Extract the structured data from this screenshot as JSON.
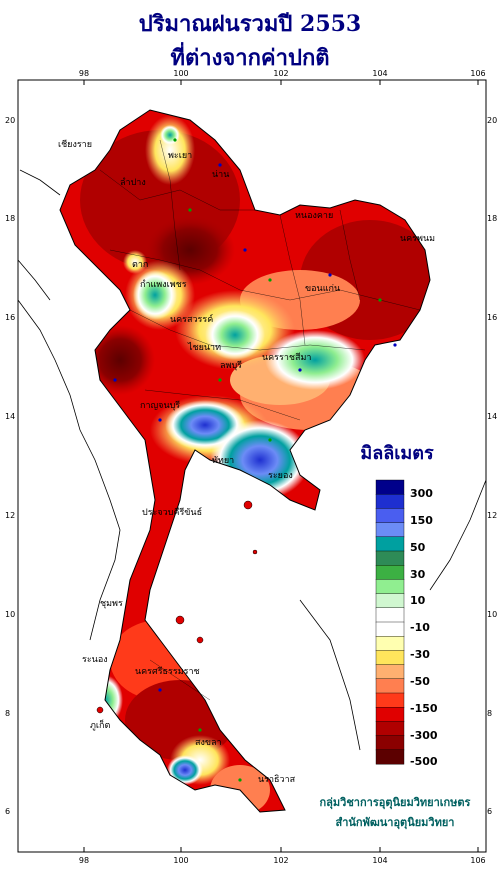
{
  "title_line1": "ปริมาณฝนรวมปี 2553",
  "title_line2": "ที่ต่างจากค่าปกติ",
  "axes": {
    "lon_ticks": [
      "98",
      "100",
      "102",
      "104",
      "106"
    ],
    "lat_ticks": [
      "20",
      "18",
      "16",
      "14",
      "12",
      "10",
      "8",
      "6"
    ]
  },
  "legend": {
    "title": "มิลลิเมตร",
    "colors": [
      "#00008b",
      "#1e2fd0",
      "#4a5ef0",
      "#6c8cf6",
      "#00a0a0",
      "#2e8b57",
      "#3cb043",
      "#90ee90",
      "#d0f7d0",
      "#ffffff",
      "#ffffff",
      "#ffffb0",
      "#ffe55c",
      "#ffb070",
      "#ff7f50",
      "#ff3a1a",
      "#e00000",
      "#b00000",
      "#8b0000",
      "#5c0000"
    ],
    "labels": [
      "300",
      "150",
      "50",
      "30",
      "10",
      "-10",
      "-30",
      "-50",
      "-150",
      "-300",
      "-500"
    ]
  },
  "places": [
    "เชียงราย",
    "พะเยา",
    "น่าน",
    "ลำปาง",
    "ตาก",
    "กำแพงเพชร",
    "นครสวรรค์",
    "หนองคาย",
    "นครพนม",
    "ขอนแก่น",
    "นครราชสีมา",
    "ไชยนาท",
    "ลพบุรี",
    "กาญจนบุรี",
    "พัทยา",
    "ระยอง",
    "ประจวบคีรีขันธ์",
    "ชุมพร",
    "ระนอง",
    "นครศรีธรรมราช",
    "ภูเก็ต",
    "สงขลา",
    "นราธิวาส"
  ],
  "credits": {
    "line1": "กลุ่มวิชาการอุตุนิยมวิทยาเกษตร",
    "line2": "สำนักพัฒนาอุตุนิยมวิทยา"
  }
}
